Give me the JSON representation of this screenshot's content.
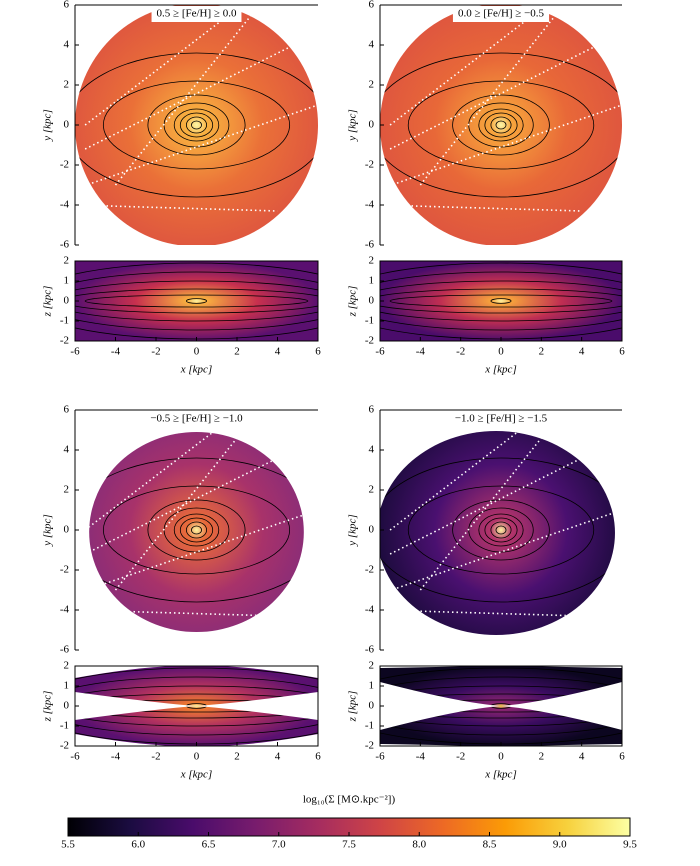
{
  "chart_data": [
    {
      "type": "image",
      "title": "0.5 ≥ [Fe/H] ≥ 0.0",
      "ylabel": "y [kpc]",
      "xlim": [
        -6,
        6
      ],
      "ylim": [
        -6,
        6
      ],
      "yticks": [
        -6,
        -4,
        -2,
        0,
        2,
        4,
        6
      ]
    },
    {
      "type": "image",
      "xlabel": "x [kpc]",
      "ylabel": "z [kpc]",
      "xlim": [
        -6,
        6
      ],
      "ylim": [
        -2,
        2
      ],
      "xticks": [
        -6,
        -4,
        -2,
        0,
        2,
        4,
        6
      ],
      "yticks": [
        -2,
        -1,
        0,
        1,
        2
      ]
    },
    {
      "type": "image",
      "title": "0.0 ≥ [Fe/H] ≥ −0.5",
      "ylabel": "y [kpc]",
      "xlim": [
        -6,
        6
      ],
      "ylim": [
        -6,
        6
      ],
      "yticks": [
        -6,
        -4,
        -2,
        0,
        2,
        4,
        6
      ]
    },
    {
      "type": "image",
      "xlabel": "x [kpc]",
      "ylabel": "z [kpc]",
      "xlim": [
        -6,
        6
      ],
      "ylim": [
        -2,
        2
      ],
      "xticks": [
        -6,
        -4,
        -2,
        0,
        2,
        4,
        6
      ],
      "yticks": [
        -2,
        -1,
        0,
        1,
        2
      ]
    },
    {
      "type": "image",
      "title": "−0.5 ≥ [Fe/H] ≥ −1.0",
      "ylabel": "y [kpc]",
      "xlim": [
        -6,
        6
      ],
      "ylim": [
        -6,
        6
      ],
      "yticks": [
        -6,
        -4,
        -2,
        0,
        2,
        4,
        6
      ]
    },
    {
      "type": "image",
      "xlabel": "x [kpc]",
      "ylabel": "z [kpc]",
      "xlim": [
        -6,
        6
      ],
      "ylim": [
        -2,
        2
      ],
      "xticks": [
        -6,
        -4,
        -2,
        0,
        2,
        4,
        6
      ],
      "yticks": [
        -2,
        -1,
        0,
        1,
        2
      ]
    },
    {
      "type": "image",
      "title": "−1.0 ≥ [Fe/H] ≥ −1.5",
      "ylabel": "y [kpc]",
      "xlim": [
        -6,
        6
      ],
      "ylim": [
        -6,
        6
      ],
      "yticks": [
        -6,
        -4,
        -2,
        0,
        2,
        4,
        6
      ]
    },
    {
      "type": "image",
      "xlabel": "x [kpc]",
      "ylabel": "z [kpc]",
      "xlim": [
        -6,
        6
      ],
      "ylim": [
        -2,
        2
      ],
      "xticks": [
        -6,
        -4,
        -2,
        0,
        2,
        4,
        6
      ],
      "yticks": [
        -2,
        -1,
        0,
        1,
        2
      ]
    },
    {
      "type": "colorbar",
      "label": "log₁₀(Σ [M⊙.kpc⁻²])",
      "clim": [
        5.5,
        9.5
      ],
      "cticks": [
        5.5,
        {
          "value": 6,
          "label": "6.0"
        },
        6.5,
        {
          "value": 7,
          "label": "7.0"
        },
        7.5,
        {
          "value": 8,
          "label": "8.0"
        },
        8.5,
        {
          "value": 9,
          "label": "9.0"
        },
        9.5
      ],
      "colors": [
        "#000004",
        "#1b0c41",
        "#4a0c6b",
        "#781c6d",
        "#a52c60",
        "#cf4446",
        "#ed6925",
        "#fb9b06",
        "#f7d13d",
        "#fcffa4"
      ]
    }
  ]
}
